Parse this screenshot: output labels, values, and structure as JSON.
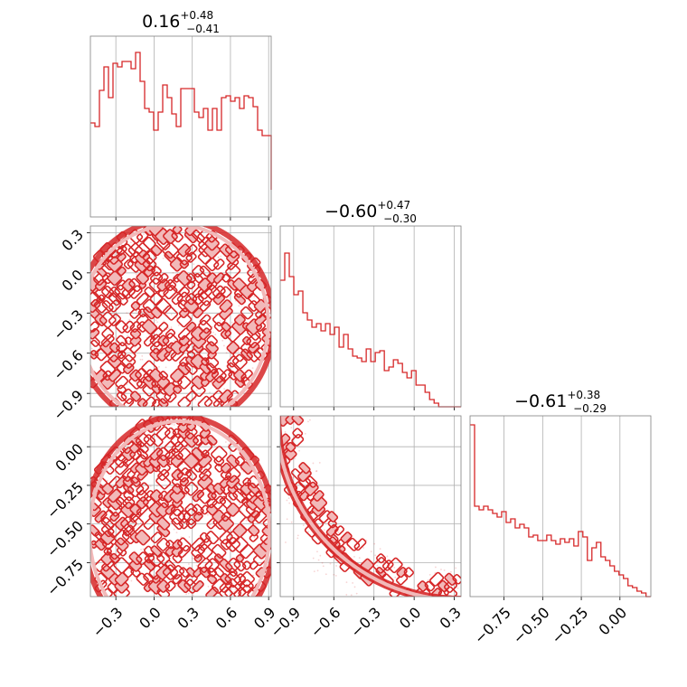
{
  "colors": {
    "series": "#d62728",
    "fill": "#f2b9b9",
    "grid": "#b0b0b0",
    "frame": "#808080"
  },
  "chart_data": [
    {
      "type": "histogram",
      "panel": "p00",
      "title": {
        "median": "0.16",
        "plus": "+0.48",
        "minus": "−0.41"
      },
      "xlim": [
        -0.5,
        0.92
      ],
      "x_ticks": [
        -0.3,
        0.0,
        0.3,
        0.6,
        0.9
      ],
      "x_ticklabels": [
        "−0.3",
        "0.0",
        "0.3",
        "0.6",
        "0.9"
      ],
      "bin_edges_start": -0.5,
      "bin_width": 0.0355,
      "counts": [
        0.52,
        0.5,
        0.7,
        0.83,
        0.66,
        0.85,
        0.83,
        0.86,
        0.86,
        0.82,
        0.91,
        0.75,
        0.6,
        0.58,
        0.48,
        0.58,
        0.73,
        0.66,
        0.57,
        0.5,
        0.71,
        0.71,
        0.71,
        0.58,
        0.55,
        0.6,
        0.48,
        0.6,
        0.48,
        0.66,
        0.67,
        0.64,
        0.66,
        0.6,
        0.67,
        0.66,
        0.61,
        0.48,
        0.45,
        0.45,
        0.15
      ]
    },
    {
      "type": "histogram",
      "panel": "p11",
      "title": {
        "median": "−0.60",
        "plus": "+0.47",
        "minus": "−0.30"
      },
      "xlim": [
        -1.0,
        0.35
      ],
      "x_ticks": [
        -0.9,
        -0.6,
        -0.3,
        0.0,
        0.3
      ],
      "x_ticklabels": [
        "−0.9",
        "−0.6",
        "−0.3",
        "0.0",
        "0.3"
      ],
      "bin_edges_start": -1.0,
      "bin_width": 0.0338,
      "counts": [
        0.7,
        0.85,
        0.72,
        0.62,
        0.64,
        0.52,
        0.48,
        0.44,
        0.46,
        0.42,
        0.46,
        0.4,
        0.44,
        0.33,
        0.4,
        0.32,
        0.28,
        0.27,
        0.25,
        0.32,
        0.25,
        0.3,
        0.31,
        0.2,
        0.22,
        0.26,
        0.24,
        0.19,
        0.16,
        0.2,
        0.12,
        0.12,
        0.08,
        0.04,
        0.02,
        0.0,
        0.0,
        0.0,
        0.0,
        0.0
      ]
    },
    {
      "type": "histogram",
      "panel": "p22",
      "title": {
        "median": "−0.61",
        "plus": "+0.38",
        "minus": "−0.29"
      },
      "xlim": [
        -0.97,
        0.2
      ],
      "x_ticks": [
        -0.75,
        -0.5,
        -0.25,
        0.0
      ],
      "x_ticklabels": [
        "−0.75",
        "−0.50",
        "−0.25",
        "0.00"
      ],
      "bin_edges_start": -0.97,
      "bin_width": 0.0292,
      "counts": [
        0.95,
        0.5,
        0.48,
        0.5,
        0.48,
        0.46,
        0.44,
        0.47,
        0.41,
        0.43,
        0.38,
        0.4,
        0.38,
        0.33,
        0.34,
        0.31,
        0.31,
        0.34,
        0.31,
        0.29,
        0.32,
        0.3,
        0.32,
        0.28,
        0.36,
        0.33,
        0.2,
        0.27,
        0.3,
        0.22,
        0.2,
        0.17,
        0.14,
        0.12,
        0.1,
        0.06,
        0.05,
        0.03,
        0.02,
        0.0
      ]
    },
    {
      "type": "contour",
      "panel": "p10",
      "xlim": [
        -0.5,
        0.92
      ],
      "ylim": [
        -1.0,
        0.35
      ],
      "x_ticks": [
        -0.3,
        0.0,
        0.3,
        0.6,
        0.9
      ],
      "y_ticks": [
        -0.9,
        -0.6,
        -0.3,
        0.0,
        0.3
      ],
      "y_ticklabels": [
        "−0.9",
        "−0.6",
        "−0.3",
        "0.0",
        "0.3"
      ],
      "region": {
        "shape": "disk",
        "center": [
          0.16,
          -0.38
        ],
        "radius": 0.78
      },
      "levels": 2
    },
    {
      "type": "contour",
      "panel": "p20",
      "xlim": [
        -0.5,
        0.92
      ],
      "ylim": [
        -0.97,
        0.2
      ],
      "x_ticks": [
        -0.3,
        0.0,
        0.3,
        0.6,
        0.9
      ],
      "x_ticklabels": [
        "−0.3",
        "0.0",
        "0.3",
        "0.6",
        "0.9"
      ],
      "y_ticks": [
        -0.75,
        -0.5,
        -0.25,
        0.0
      ],
      "y_ticklabels": [
        "−0.75",
        "−0.50",
        "−0.25",
        "0.00"
      ],
      "region": {
        "shape": "disk",
        "center": [
          0.2,
          -0.55
        ],
        "radius": 0.75
      },
      "levels": 2
    },
    {
      "type": "contour",
      "panel": "p21",
      "xlim": [
        -1.0,
        0.35
      ],
      "ylim": [
        -0.97,
        0.2
      ],
      "x_ticks": [
        -0.9,
        -0.6,
        -0.3,
        0.0,
        0.3
      ],
      "x_ticklabels": [
        "−0.9",
        "−0.6",
        "−0.3",
        "0.0",
        "0.3"
      ],
      "y_ticks": [
        -0.75,
        -0.5,
        -0.25,
        0.0
      ],
      "region": {
        "shape": "band",
        "description": "curved band along lower-left, from (-1.0, 0.1) down to (0.3, -0.97)"
      },
      "levels": 2
    }
  ]
}
